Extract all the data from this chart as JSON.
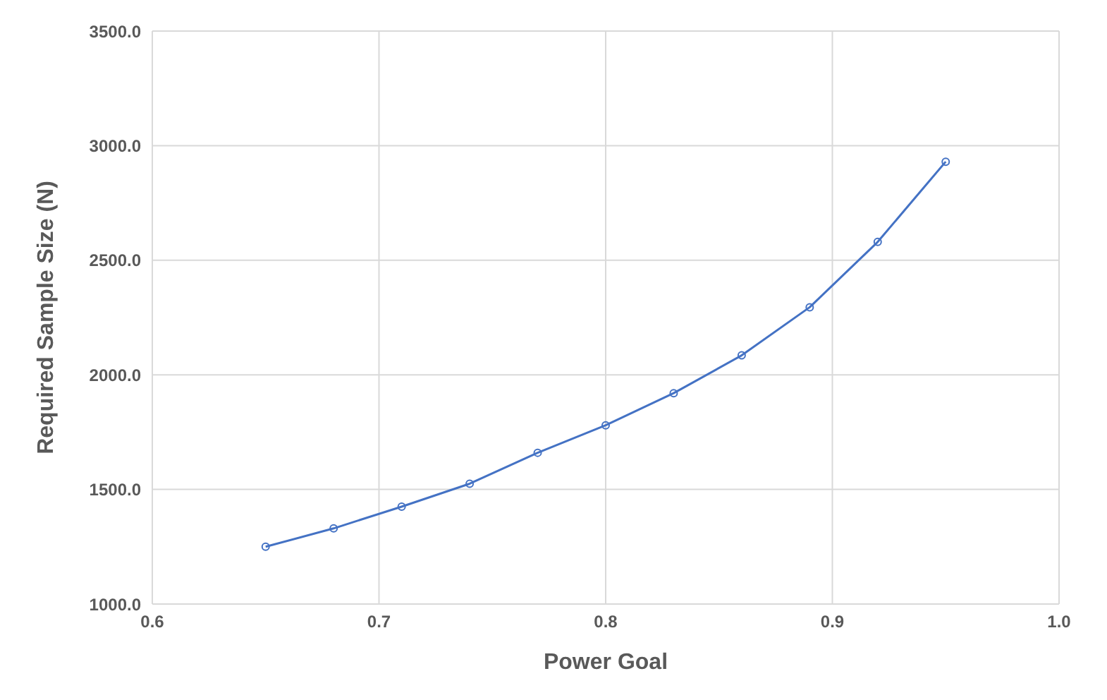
{
  "chart_data": {
    "type": "line",
    "xlabel": "Power Goal",
    "ylabel": "Required Sample Size (N)",
    "x": [
      0.65,
      0.68,
      0.71,
      0.74,
      0.77,
      0.8,
      0.83,
      0.86,
      0.89,
      0.92,
      0.95
    ],
    "series": [
      {
        "color": "#4472c4",
        "values": [
          1250,
          1330,
          1425,
          1525,
          1660,
          1780,
          1920,
          2085,
          2295,
          2580,
          2930
        ]
      }
    ],
    "xlim": [
      0.6,
      1.0
    ],
    "xticks": [
      0.6,
      0.7,
      0.8,
      0.9,
      {
        "value": 1.0,
        "label": "1.0"
      }
    ],
    "ylim": [
      1000,
      3500
    ],
    "yticks": [
      {
        "value": 1000,
        "label": "1000.0"
      },
      {
        "value": 1500,
        "label": "1500.0"
      },
      {
        "value": 2000,
        "label": "2000.0"
      },
      {
        "value": 2500,
        "label": "2500.0"
      },
      {
        "value": 3000,
        "label": "3000.0"
      },
      {
        "value": 3500,
        "label": "3500.0"
      }
    ],
    "grid": true,
    "marker": "circle",
    "line_style": "solid"
  }
}
